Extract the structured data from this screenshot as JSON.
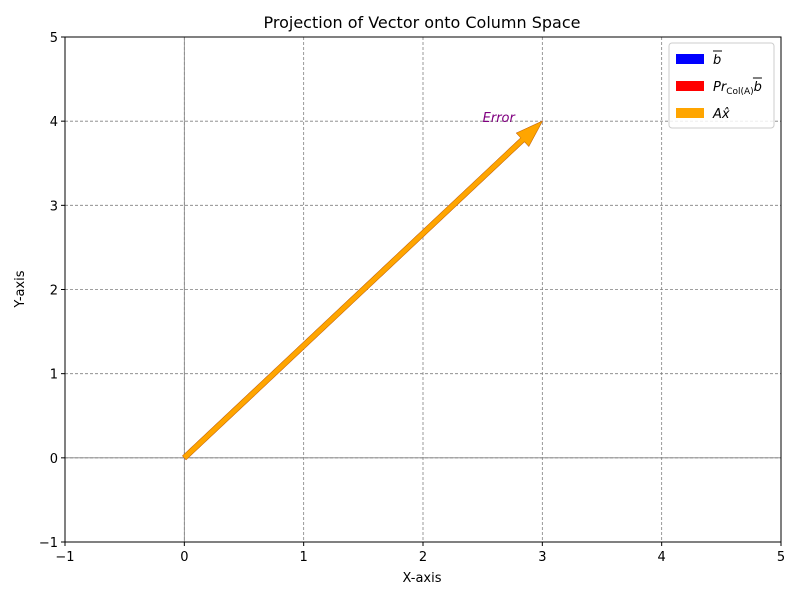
{
  "chart_data": {
    "type": "vector",
    "title": "Projection of Vector onto Column Space",
    "xlabel": "X-axis",
    "ylabel": "Y-axis",
    "xlim": [
      -1,
      5
    ],
    "ylim": [
      -1,
      5
    ],
    "xticks": [
      "−1",
      "0",
      "1",
      "2",
      "3",
      "4",
      "5"
    ],
    "yticks": [
      "−1",
      "0",
      "1",
      "2",
      "3",
      "4",
      "5"
    ],
    "grid": true,
    "legend_position": "top-right",
    "series": [
      {
        "name_main": "b",
        "name_sub": "",
        "origin": [
          0,
          0
        ],
        "vector": [
          3,
          4
        ],
        "color": "#0000ff"
      },
      {
        "name_main": "Pr",
        "name_sub": "Col(A)",
        "name_tail": "b",
        "origin": [
          0,
          0
        ],
        "vector": [
          3,
          4
        ],
        "color": "#ff0000"
      },
      {
        "name_main": "Ax̂",
        "name_sub": "",
        "origin": [
          0,
          0
        ],
        "vector": [
          3,
          4
        ],
        "color": "#ffa500"
      }
    ],
    "annotations": [
      {
        "text": "Error",
        "x": 2.5,
        "y": 4.0,
        "color": "#800080"
      }
    ]
  }
}
